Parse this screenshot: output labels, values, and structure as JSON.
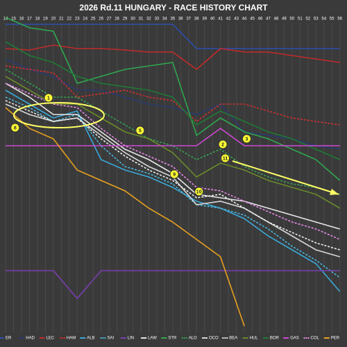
{
  "chart_data": {
    "type": "line",
    "title": "2026 Rd.11 HUNGARY - RACE HISTORY CHART",
    "xlim": [
      13.3,
      56.9
    ],
    "ylim": [
      20,
      490
    ],
    "y_inverted": true,
    "grid": true,
    "xticks": [
      14,
      15,
      16,
      17,
      18,
      19,
      20,
      21,
      22,
      23,
      24,
      25,
      26,
      27,
      28,
      29,
      30,
      31,
      32,
      33,
      34,
      35,
      36,
      37,
      38,
      39,
      40,
      41,
      42,
      43,
      44,
      45,
      46,
      47,
      48,
      49,
      50,
      51,
      52,
      53,
      54,
      55,
      56
    ],
    "x": [
      14,
      17,
      20,
      23,
      26,
      29,
      32,
      35,
      38,
      41,
      44,
      47,
      50,
      53,
      56
    ],
    "series": [
      {
        "name": "ER",
        "color": "#2d4fb0",
        "dashed": false,
        "values": [
          35,
          35,
          35,
          35,
          35,
          35,
          35,
          35,
          70,
          70,
          70,
          70,
          70,
          70,
          70
        ]
      },
      {
        "name": "HAD",
        "color": "#2a3a70",
        "dashed": false,
        "values": [
          85,
          100,
          110,
          130,
          130,
          140,
          150,
          155,
          165,
          150,
          190,
          195,
          200,
          210,
          215
        ]
      },
      {
        "name": "LEC",
        "color": "#c42a2a",
        "dashed": false,
        "values": [
          70,
          72,
          65,
          70,
          70,
          72,
          75,
          75,
          100,
          70,
          75,
          75,
          80,
          85,
          90
        ]
      },
      {
        "name": "HAM",
        "color": "#d03030",
        "dashed": true,
        "values": [
          95,
          100,
          105,
          140,
          135,
          130,
          140,
          145,
          175,
          150,
          150,
          160,
          170,
          175,
          180
        ]
      },
      {
        "name": "ALB",
        "color": "#3aa8d8",
        "dashed": false,
        "values": [
          130,
          150,
          170,
          160,
          230,
          245,
          255,
          270,
          290,
          300,
          315,
          340,
          360,
          380,
          420
        ]
      },
      {
        "name": "SAI",
        "color": "#4ab8e0",
        "dashed": true,
        "values": [
          140,
          155,
          175,
          165,
          210,
          240,
          250,
          265,
          295,
          300,
          310,
          330,
          355,
          375,
          400
        ]
      },
      {
        "name": "LIN",
        "color": "#7a3fb0",
        "dashed": false,
        "values": [
          390,
          390,
          390,
          430,
          390,
          390,
          390,
          390,
          390,
          390,
          390,
          390,
          390,
          390,
          390
        ]
      },
      {
        "name": "LAW",
        "color": "#e8e8e8",
        "dashed": false,
        "values": [
          120,
          140,
          165,
          165,
          190,
          215,
          230,
          250,
          280,
          285,
          290,
          300,
          310,
          320,
          330
        ]
      },
      {
        "name": "STR",
        "color": "#2fa84f",
        "dashed": false,
        "values": [
          25,
          40,
          45,
          120,
          110,
          100,
          95,
          90,
          195,
          170,
          190,
          200,
          215,
          230,
          260
        ]
      },
      {
        "name": "ALO",
        "color": "#35a050",
        "dashed": true,
        "values": [
          100,
          120,
          140,
          140,
          160,
          180,
          200,
          210,
          230,
          215,
          240,
          255,
          265,
          270,
          280
        ]
      },
      {
        "name": "OCO",
        "color": "#d8d8d8",
        "dashed": false,
        "values": [
          150,
          165,
          175,
          170,
          195,
          220,
          240,
          255,
          295,
          290,
          300,
          320,
          340,
          360,
          370
        ]
      },
      {
        "name": "BEA",
        "color": "#f0f0f0",
        "dashed": true,
        "values": [
          145,
          160,
          175,
          170,
          200,
          225,
          245,
          260,
          285,
          280,
          300,
          320,
          335,
          350,
          360
        ]
      },
      {
        "name": "HUL",
        "color": "#6a8a2a",
        "dashed": false,
        "values": [
          110,
          130,
          150,
          150,
          170,
          190,
          200,
          220,
          255,
          235,
          245,
          260,
          270,
          280,
          300
        ]
      },
      {
        "name": "BOR",
        "color": "#1f7a35",
        "dashed": false,
        "values": [
          60,
          80,
          90,
          110,
          120,
          125,
          130,
          140,
          180,
          160,
          175,
          190,
          200,
          215,
          230
        ]
      },
      {
        "name": "GAS",
        "color": "#d048d8",
        "dashed": false,
        "values": [
          210,
          210,
          210,
          210,
          210,
          210,
          210,
          210,
          210,
          185,
          210,
          210,
          210,
          210,
          210
        ]
      },
      {
        "name": "COL",
        "color": "#e88ae8",
        "dashed": true,
        "values": [
          120,
          135,
          150,
          155,
          185,
          210,
          225,
          240,
          270,
          275,
          290,
          305,
          320,
          330,
          345
        ]
      },
      {
        "name": "PER",
        "color": "#e8a020",
        "dashed": false,
        "values": [
          155,
          185,
          200,
          245,
          260,
          275,
          300,
          320,
          345,
          370,
          470,
          null,
          null,
          null,
          null
        ]
      }
    ],
    "annotations": [
      {
        "text": "1",
        "x": 19.4,
        "y": 141
      },
      {
        "text": "8",
        "x": 15.2,
        "y": 184
      },
      {
        "text": "5",
        "x": 30.9,
        "y": 188
      },
      {
        "text": "2",
        "x": 41.3,
        "y": 208
      },
      {
        "text": "3",
        "x": 44.3,
        "y": 200
      },
      {
        "text": "11",
        "x": 41.6,
        "y": 228
      },
      {
        "text": "9",
        "x": 35.2,
        "y": 251
      },
      {
        "text": "10",
        "x": 38.3,
        "y": 276
      }
    ]
  }
}
